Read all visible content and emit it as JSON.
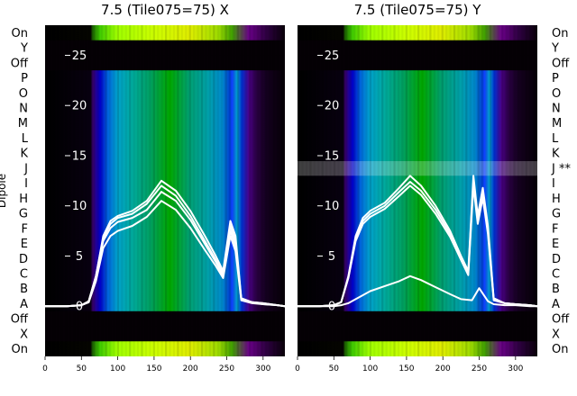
{
  "figure": {
    "ylabel": "Dipole",
    "colors": {
      "background": "#ffffff",
      "trace": "#ffffff",
      "text": "#000000"
    }
  },
  "chart_data": [
    {
      "type": "heatmap",
      "title": "7.5 (Tile075=75) X",
      "xlabel": "",
      "ylabel": "Dipole",
      "xlim": [
        0,
        330
      ],
      "x_ticks": [
        "0",
        "50",
        "100",
        "150",
        "200",
        "250",
        "300"
      ],
      "row_labels_left": [
        "On",
        "Y",
        "Off",
        "P",
        "O",
        "N",
        "M",
        "L",
        "K",
        "J",
        "I",
        "H",
        "G",
        "F",
        "E",
        "D",
        "C",
        "B",
        "A",
        "Off",
        "X",
        "On"
      ],
      "overlay_ylim": [
        -5,
        28
      ],
      "overlay_y_ticks": [
        "0",
        "5",
        "10",
        "15",
        "20",
        "25"
      ],
      "colormap": "nipy_spectral",
      "row_intensity": [
        0.9,
        0.05,
        0.05,
        0.65,
        0.65,
        0.65,
        0.65,
        0.65,
        0.65,
        0.65,
        0.65,
        0.65,
        0.65,
        0.65,
        0.65,
        0.65,
        0.65,
        0.65,
        0.65,
        0.05,
        0.05,
        0.85
      ],
      "series": [
        {
          "x": [
            0,
            30,
            50,
            60,
            70,
            80,
            90,
            100,
            120,
            140,
            160,
            180,
            200,
            220,
            235,
            245,
            255,
            262,
            270,
            285,
            300,
            320,
            330
          ],
          "y": [
            0,
            0,
            0.1,
            0.5,
            3,
            7,
            8.5,
            9,
            9.5,
            10.5,
            12.5,
            11.5,
            9.5,
            7,
            5,
            3.5,
            8.5,
            7,
            0.8,
            0.4,
            0.3,
            0.1,
            0
          ]
        },
        {
          "x": [
            0,
            30,
            50,
            60,
            70,
            80,
            90,
            100,
            120,
            140,
            160,
            180,
            200,
            220,
            235,
            245,
            255,
            262,
            270,
            285,
            300,
            320,
            330
          ],
          "y": [
            0,
            0,
            0.1,
            0.5,
            3,
            6.8,
            8.2,
            8.8,
            9.2,
            10.2,
            12.0,
            11.0,
            9.0,
            6.5,
            4.6,
            3.2,
            8,
            6.5,
            0.7,
            0.4,
            0.3,
            0.1,
            0
          ]
        },
        {
          "x": [
            0,
            30,
            50,
            60,
            70,
            80,
            90,
            100,
            120,
            140,
            160,
            180,
            200,
            220,
            235,
            245,
            255,
            262,
            270,
            285,
            300,
            320,
            330
          ],
          "y": [
            0,
            0,
            0.1,
            0.4,
            2.8,
            6.5,
            7.8,
            8.4,
            8.8,
            9.6,
            11.4,
            10.5,
            8.6,
            6.2,
            4.4,
            3,
            7.5,
            6,
            0.7,
            0.4,
            0.2,
            0.1,
            0
          ]
        },
        {
          "x": [
            0,
            30,
            50,
            60,
            70,
            80,
            90,
            100,
            120,
            140,
            160,
            180,
            200,
            220,
            235,
            245,
            255,
            262,
            270,
            285,
            300,
            320,
            330
          ],
          "y": [
            0,
            0,
            0.1,
            0.4,
            2.5,
            5.8,
            7,
            7.5,
            8,
            8.9,
            10.5,
            9.6,
            7.8,
            5.6,
            4,
            2.8,
            7,
            5.5,
            0.6,
            0.3,
            0.2,
            0.1,
            0
          ]
        }
      ]
    },
    {
      "type": "heatmap",
      "title": "7.5 (Tile075=75) Y",
      "xlabel": "",
      "ylabel": "",
      "xlim": [
        0,
        330
      ],
      "x_ticks": [
        "0",
        "50",
        "100",
        "150",
        "200",
        "250",
        "300"
      ],
      "row_labels_right": [
        "On",
        "Y",
        "Off",
        "P",
        "O",
        "N",
        "M",
        "L",
        "K",
        "J **",
        "I",
        "H",
        "G",
        "F",
        "E",
        "D",
        "C",
        "B",
        "A",
        "Off",
        "X",
        "On"
      ],
      "overlay_ylim": [
        -5,
        28
      ],
      "overlay_y_ticks": [
        "0",
        "5",
        "10",
        "15",
        "20",
        "25"
      ],
      "colormap": "nipy_spectral",
      "row_intensity": [
        0.85,
        0.05,
        0.05,
        0.65,
        0.65,
        0.65,
        0.65,
        0.65,
        0.65,
        0.3,
        0.65,
        0.65,
        0.65,
        0.65,
        0.65,
        0.65,
        0.65,
        0.65,
        0.65,
        0.05,
        0.05,
        0.8
      ],
      "series": [
        {
          "x": [
            0,
            30,
            50,
            60,
            70,
            80,
            90,
            100,
            120,
            140,
            155,
            170,
            190,
            210,
            225,
            235,
            242,
            248,
            255,
            262,
            270,
            285,
            300,
            320,
            330
          ],
          "y": [
            0,
            0,
            0.1,
            0.4,
            3,
            7,
            8.8,
            9.5,
            10.3,
            11.8,
            13,
            12,
            10,
            7.5,
            5,
            3.5,
            13,
            9,
            11.8,
            8,
            0.8,
            0.3,
            0.2,
            0.1,
            0
          ]
        },
        {
          "x": [
            0,
            30,
            50,
            60,
            70,
            80,
            90,
            100,
            120,
            140,
            155,
            170,
            190,
            210,
            225,
            235,
            242,
            248,
            255,
            262,
            270,
            285,
            300,
            320,
            330
          ],
          "y": [
            0,
            0,
            0.1,
            0.4,
            2.9,
            6.8,
            8.5,
            9.2,
            10,
            11.4,
            12.4,
            11.5,
            9.6,
            7.2,
            4.8,
            3.3,
            12.5,
            8.6,
            11.2,
            7.6,
            0.7,
            0.3,
            0.2,
            0.1,
            0
          ]
        },
        {
          "x": [
            0,
            30,
            50,
            60,
            70,
            80,
            90,
            100,
            120,
            140,
            155,
            170,
            190,
            210,
            225,
            235,
            242,
            248,
            255,
            262,
            270,
            285,
            300,
            320,
            330
          ],
          "y": [
            0,
            0,
            0.1,
            0.4,
            2.8,
            6.5,
            8.2,
            8.9,
            9.7,
            11,
            12,
            11.1,
            9.2,
            6.9,
            4.6,
            3.1,
            12,
            8.2,
            10.8,
            7.2,
            0.6,
            0.3,
            0.2,
            0.1,
            0
          ]
        },
        {
          "x": [
            0,
            30,
            50,
            60,
            70,
            80,
            90,
            100,
            120,
            140,
            155,
            170,
            190,
            210,
            225,
            240,
            250,
            262,
            270,
            285,
            300,
            320,
            330
          ],
          "y": [
            0,
            0,
            0,
            0.1,
            0.3,
            0.7,
            1.1,
            1.5,
            2,
            2.5,
            3,
            2.6,
            1.9,
            1.2,
            0.7,
            0.6,
            1.8,
            0.5,
            0.2,
            0.1,
            0.1,
            0,
            0
          ]
        }
      ]
    }
  ]
}
